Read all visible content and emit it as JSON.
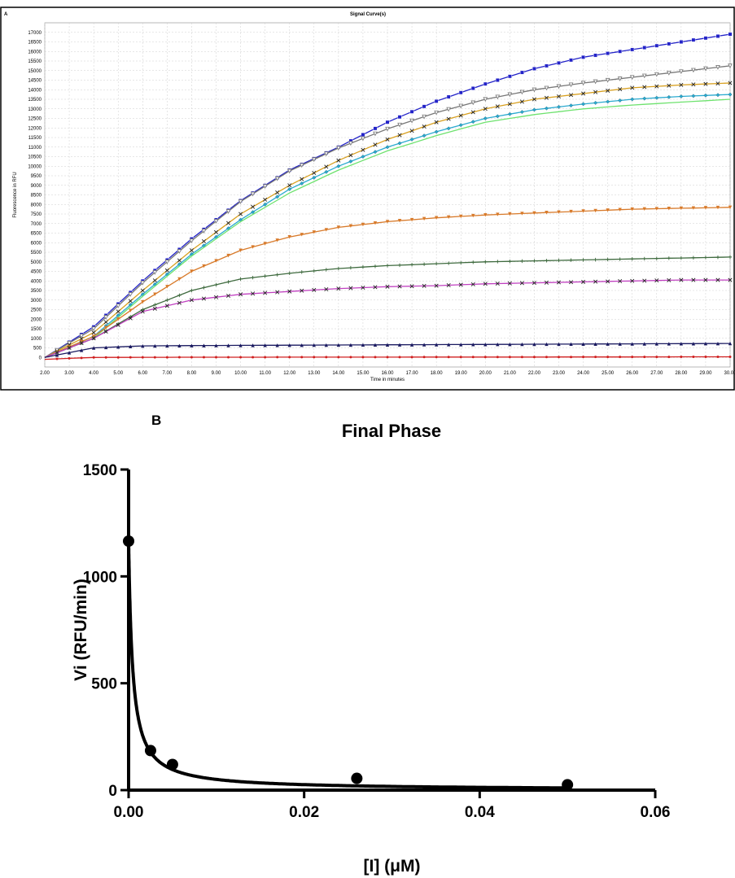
{
  "chart_data": [
    {
      "panel_label": "A",
      "type": "line",
      "title": "Signal Curve(s)",
      "xlabel": "Time in minutes",
      "ylabel": "Fluorescence in RFU",
      "xlim": [
        2,
        30
      ],
      "ylim": [
        -500,
        17500
      ],
      "xticks": [
        "2.00",
        "3.00",
        "4.00",
        "5.00",
        "6.00",
        "7.00",
        "8.00",
        "9.00",
        "10.00",
        "11.00",
        "12.00",
        "13.00",
        "14.00",
        "15.00",
        "16.00",
        "17.00",
        "18.00",
        "19.00",
        "20.00",
        "21.00",
        "22.00",
        "23.00",
        "24.00",
        "25.00",
        "26.00",
        "27.00",
        "28.00",
        "29.00",
        "30.00"
      ],
      "yticks": [
        "0",
        "500",
        "1000",
        "1500",
        "2000",
        "2500",
        "3000",
        "3500",
        "4000",
        "4500",
        "5000",
        "5500",
        "6000",
        "6500",
        "7000",
        "7500",
        "8000",
        "8500",
        "9000",
        "9500",
        "10000",
        "10500",
        "11000",
        "11500",
        "12000",
        "12500",
        "13000",
        "13500",
        "14000",
        "14500",
        "15000",
        "15500",
        "16000",
        "16500",
        "17000"
      ],
      "grid": true,
      "series": [
        {
          "color": "#2323c8",
          "marker": "square",
          "x": [
            2,
            4,
            6,
            8,
            10,
            12,
            14,
            16,
            18,
            20,
            22,
            24,
            26,
            28,
            30
          ],
          "y": [
            0,
            1600,
            4000,
            6200,
            8200,
            9800,
            11000,
            12300,
            13400,
            14300,
            15100,
            15700,
            16100,
            16500,
            16900
          ]
        },
        {
          "color": "#777777",
          "marker": "triangle-down-open",
          "x": [
            2,
            4,
            6,
            8,
            10,
            12,
            14,
            16,
            18,
            20,
            22,
            24,
            26,
            28,
            30
          ],
          "y": [
            0,
            1500,
            3900,
            6100,
            8150,
            9750,
            10950,
            11950,
            12800,
            13500,
            14000,
            14350,
            14650,
            14950,
            15250
          ]
        },
        {
          "color": "#d8a020",
          "marker": "x",
          "x": [
            2,
            4,
            6,
            8,
            10,
            12,
            14,
            16,
            18,
            20,
            22,
            24,
            26,
            28,
            30
          ],
          "y": [
            0,
            1300,
            3500,
            5600,
            7500,
            9000,
            10300,
            11400,
            12300,
            13000,
            13500,
            13800,
            14100,
            14250,
            14350
          ]
        },
        {
          "color": "#2aaad0",
          "marker": "diamond",
          "x": [
            2,
            4,
            6,
            8,
            10,
            12,
            14,
            16,
            18,
            20,
            22,
            24,
            26,
            28,
            30
          ],
          "y": [
            0,
            1100,
            3300,
            5400,
            7200,
            8800,
            10000,
            11000,
            11800,
            12500,
            12950,
            13250,
            13500,
            13650,
            13750
          ]
        },
        {
          "color": "#6ee26e",
          "marker": "none",
          "x": [
            2,
            4,
            6,
            8,
            10,
            12,
            14,
            16,
            18,
            20,
            22,
            24,
            26,
            28,
            30
          ],
          "y": [
            0,
            1000,
            3200,
            5300,
            7100,
            8600,
            9800,
            10800,
            11600,
            12300,
            12700,
            13000,
            13200,
            13350,
            13500
          ]
        },
        {
          "color": "#d87a2a",
          "marker": "triangle-down",
          "x": [
            2,
            4,
            6,
            8,
            10,
            12,
            14,
            16,
            18,
            20,
            22,
            24,
            26,
            28,
            30
          ],
          "y": [
            0,
            1100,
            2900,
            4500,
            5600,
            6300,
            6800,
            7100,
            7300,
            7450,
            7550,
            7650,
            7750,
            7800,
            7850
          ]
        },
        {
          "color": "#3e6a3e",
          "marker": "plus",
          "x": [
            2,
            4,
            6,
            8,
            10,
            12,
            14,
            16,
            18,
            20,
            22,
            24,
            26,
            28,
            30
          ],
          "y": [
            0,
            1000,
            2500,
            3500,
            4100,
            4400,
            4650,
            4800,
            4900,
            5000,
            5050,
            5100,
            5150,
            5200,
            5250
          ]
        },
        {
          "color": "#c040c0",
          "marker": "x",
          "x": [
            2,
            4,
            6,
            8,
            10,
            12,
            14,
            16,
            18,
            20,
            22,
            24,
            26,
            28,
            30
          ],
          "y": [
            0,
            1000,
            2400,
            3000,
            3300,
            3450,
            3600,
            3700,
            3750,
            3850,
            3900,
            3950,
            4000,
            4050,
            4050
          ]
        },
        {
          "color": "#1a1a60",
          "marker": "triangle-up",
          "x": [
            2,
            4,
            6,
            8,
            10,
            12,
            14,
            16,
            18,
            20,
            22,
            24,
            26,
            28,
            30
          ],
          "y": [
            0,
            500,
            600,
            620,
            630,
            640,
            650,
            660,
            670,
            680,
            690,
            700,
            710,
            720,
            730
          ]
        },
        {
          "color": "#d02020",
          "marker": "circle",
          "x": [
            2,
            4,
            6,
            8,
            10,
            12,
            14,
            16,
            18,
            20,
            22,
            24,
            26,
            28,
            30
          ],
          "y": [
            -100,
            0,
            5,
            10,
            10,
            15,
            15,
            15,
            20,
            20,
            20,
            25,
            25,
            30,
            30
          ]
        }
      ]
    },
    {
      "panel_label": "B",
      "type": "scatter",
      "title": "Final Phase",
      "xlabel": "[I] (μM)",
      "ylabel": "Vi (RFU/min)",
      "xlim": [
        0,
        0.06
      ],
      "ylim": [
        0,
        1500
      ],
      "xticks": [
        "0.00",
        "0.02",
        "0.04",
        "0.06"
      ],
      "yticks": [
        "0",
        "500",
        "1000",
        "1500"
      ],
      "points": {
        "x": [
          0,
          0.0025,
          0.005,
          0.026,
          0.05
        ],
        "y": [
          1165,
          185,
          120,
          55,
          25
        ]
      },
      "fit": {
        "model": "hyperbolic",
        "y0": 1165,
        "k": 0.00045
      }
    }
  ]
}
